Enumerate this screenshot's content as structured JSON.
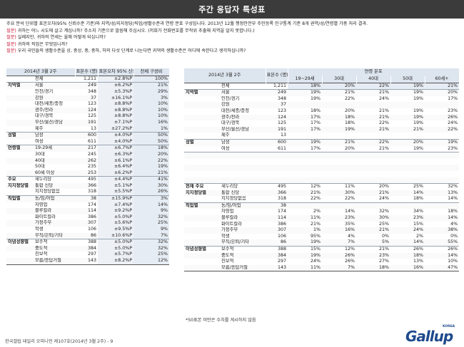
{
  "title": "주간 응답자 특성표",
  "notes": [
    {
      "label": "",
      "text": "주요 분석 단위별 표본오차(95% 신뢰수준 기준)와 지역/성/지지정당/직업/생활수준과 연령 분포 구성입니다. 2013년 12월 행정안전부 주민등록 인구통계 기준 8개 권역/성/연령별 가중 처리 결과."
    },
    {
      "label": "질문)",
      "text": " 귀하는 어느 시도에 살고 계십니까? 주소지 기준으로 말씀해 주십시오. (저희가 전화번호를 무작위 추출해 지역을 알지 못합니다.)"
    },
    {
      "label": "질문)",
      "text": " 실례지만, 귀하의 연세는 올해 어떻게 되십니까?"
    },
    {
      "label": "질문)",
      "text": " 귀하의 직업은 무엇입니까?"
    },
    {
      "label": "질문)",
      "text": " 우리 국민들의 생활수준을 상, 중상, 중, 중하, 하의 다섯 단계로 나눈다면 귀댁의 생활수준은 어디에 속한다고 생각하십니까?"
    }
  ],
  "left": {
    "headers": {
      "period": "2014년 3월 2주",
      "n": "표본수 (명)",
      "moe": "표본오차 95% 신뢰수준",
      "comp": "전체 구성비"
    },
    "rows": [
      {
        "g": "",
        "c": "전체",
        "n": "1,211",
        "e": "±2.8%P",
        "p": "100%",
        "top": "first"
      },
      {
        "g": "지역별",
        "c": "서울",
        "n": "249",
        "e": "±6.2%P",
        "p": "21%",
        "top": "sec"
      },
      {
        "g": "",
        "c": "인천/경기",
        "n": "348",
        "e": "±5.3%P",
        "p": "29%"
      },
      {
        "g": "",
        "c": "강원",
        "n": "37",
        "e": "±16.1%P",
        "p": "3%"
      },
      {
        "g": "",
        "c": "대전/세종/충청",
        "n": "123",
        "e": "±8.8%P",
        "p": "10%"
      },
      {
        "g": "",
        "c": "광주/전라",
        "n": "124",
        "e": "±8.8%P",
        "p": "10%"
      },
      {
        "g": "",
        "c": "대구/경북",
        "n": "125",
        "e": "±8.8%P",
        "p": "10%"
      },
      {
        "g": "",
        "c": "부산/울산/경남",
        "n": "191",
        "e": "±7.1%P",
        "p": "16%"
      },
      {
        "g": "",
        "c": "제주",
        "n": "13",
        "e": "±27.2%P",
        "p": "1%"
      },
      {
        "g": "성별",
        "c": "남성",
        "n": "600",
        "e": "±4.0%P",
        "p": "50%",
        "top": "sec"
      },
      {
        "g": "",
        "c": "여성",
        "n": "611",
        "e": "±4.0%P",
        "p": "50%"
      },
      {
        "g": "연령별",
        "c": "19-29세",
        "n": "217",
        "e": "±6.7%P",
        "p": "18%",
        "top": "sec"
      },
      {
        "g": "",
        "c": "30대",
        "n": "245",
        "e": "±6.3%P",
        "p": "20%"
      },
      {
        "g": "",
        "c": "40대",
        "n": "262",
        "e": "±6.1%P",
        "p": "22%"
      },
      {
        "g": "",
        "c": "50대",
        "n": "235",
        "e": "±6.4%P",
        "p": "19%"
      },
      {
        "g": "",
        "c": "60세 이상",
        "n": "253",
        "e": "±6.2%P",
        "p": "21%"
      },
      {
        "g": "주요",
        "c": "새누리당",
        "n": "495",
        "e": "±4.4%P",
        "p": "41%",
        "top": "sec"
      },
      {
        "g": "지지정당별",
        "c": "통합 신당",
        "n": "366",
        "e": "±5.1%P",
        "p": "30%"
      },
      {
        "g": "",
        "c": "지지정당없음",
        "n": "318",
        "e": "±5.5%P",
        "p": "26%"
      },
      {
        "g": "직업별",
        "c": "농/임/어업",
        "n": "38",
        "e": "±15.9%P",
        "p": "3%",
        "top": "sec"
      },
      {
        "g": "",
        "c": "자영업",
        "n": "174",
        "e": "±7.4%P",
        "p": "14%"
      },
      {
        "g": "",
        "c": "블루칼라",
        "n": "114",
        "e": "±9.2%P",
        "p": "9%"
      },
      {
        "g": "",
        "c": "화이트칼라",
        "n": "386",
        "e": "±5.0%P",
        "p": "32%"
      },
      {
        "g": "",
        "c": "가정주부",
        "n": "307",
        "e": "±5.6%P",
        "p": "25%"
      },
      {
        "g": "",
        "c": "학생",
        "n": "106",
        "e": "±9.5%P",
        "p": "9%"
      },
      {
        "g": "",
        "c": "무직/은퇴/기타",
        "n": "86",
        "e": "±10.6%P",
        "p": "7%"
      },
      {
        "g": "이념성향별",
        "c": "보수적",
        "n": "388",
        "e": "±5.0%P",
        "p": "32%",
        "top": "sec"
      },
      {
        "g": "",
        "c": "중도적",
        "n": "384",
        "e": "±5.0%P",
        "p": "32%"
      },
      {
        "g": "",
        "c": "진보적",
        "n": "297",
        "e": "±5.7%P",
        "p": "25%"
      },
      {
        "g": "",
        "c": "모름/응답거절",
        "n": "143",
        "e": "±8.2%P",
        "p": "12%",
        "last": true
      }
    ]
  },
  "right": {
    "headers": {
      "period": "2014년 3월 2주",
      "n": "표본수 (명)",
      "dist": "연령 분포",
      "a1": "19~29세",
      "a2": "30대",
      "a3": "40대",
      "a4": "50대",
      "a5": "60세+"
    },
    "rows": [
      {
        "g": "",
        "c": "전체",
        "n": "1,211",
        "v": [
          "18%",
          "20%",
          "22%",
          "19%",
          "21%"
        ],
        "top": "first"
      },
      {
        "g": "지역별",
        "c": "서울",
        "n": "249",
        "v": [
          "19%",
          "21%",
          "21%",
          "19%",
          "20%"
        ],
        "top": "sec"
      },
      {
        "g": "",
        "c": "인천/경기",
        "n": "348",
        "v": [
          "19%",
          "22%",
          "24%",
          "19%",
          "17%"
        ]
      },
      {
        "g": "",
        "c": "강원",
        "n": "37",
        "v": [
          "",
          "",
          "",
          "",
          ""
        ]
      },
      {
        "g": "",
        "c": "대전/세종/충청",
        "n": "123",
        "v": [
          "18%",
          "20%",
          "21%",
          "19%",
          "23%"
        ]
      },
      {
        "g": "",
        "c": "광주/전라",
        "n": "124",
        "v": [
          "17%",
          "18%",
          "21%",
          "19%",
          "26%"
        ]
      },
      {
        "g": "",
        "c": "대구/경북",
        "n": "125",
        "v": [
          "17%",
          "18%",
          "22%",
          "19%",
          "24%"
        ]
      },
      {
        "g": "",
        "c": "부산/울산/경남",
        "n": "191",
        "v": [
          "17%",
          "19%",
          "21%",
          "21%",
          "22%"
        ]
      },
      {
        "g": "",
        "c": "제주",
        "n": "13",
        "v": [
          "",
          "",
          "",
          "",
          ""
        ]
      },
      {
        "g": "성별",
        "c": "남성",
        "n": "600",
        "v": [
          "19%",
          "21%",
          "22%",
          "20%",
          "19%"
        ],
        "top": "sec"
      },
      {
        "g": "",
        "c": "여성",
        "n": "611",
        "v": [
          "17%",
          "20%",
          "21%",
          "19%",
          "23%"
        ]
      },
      {
        "g": "",
        "c": "",
        "n": "",
        "v": [
          "",
          "",
          "",
          "",
          ""
        ],
        "top": "sec"
      },
      {
        "g": "",
        "c": "",
        "n": "",
        "v": [
          "",
          "",
          "",
          "",
          ""
        ]
      },
      {
        "g": "",
        "c": "",
        "n": "",
        "v": [
          "",
          "",
          "",
          "",
          ""
        ]
      },
      {
        "g": "",
        "c": "",
        "n": "",
        "v": [
          "",
          "",
          "",
          "",
          ""
        ]
      },
      {
        "g": "",
        "c": "",
        "n": "",
        "v": [
          "",
          "",
          "",
          "",
          ""
        ]
      },
      {
        "g": "현재 주요",
        "c": "새누리당",
        "n": "495",
        "v": [
          "12%",
          "11%",
          "20%",
          "25%",
          "32%"
        ],
        "top": "sec"
      },
      {
        "g": "지지정당별",
        "c": "통합 신당",
        "n": "366",
        "v": [
          "21%",
          "30%",
          "21%",
          "14%",
          "13%"
        ]
      },
      {
        "g": "",
        "c": "지지정당없음",
        "n": "318",
        "v": [
          "22%",
          "22%",
          "24%",
          "18%",
          "14%"
        ]
      },
      {
        "g": "직업별",
        "c": "농/임/어업",
        "n": "38",
        "v": [
          "",
          "",
          "",
          "",
          ""
        ],
        "top": "sec"
      },
      {
        "g": "",
        "c": "자영업",
        "n": "174",
        "v": [
          "2%",
          "14%",
          "32%",
          "34%",
          "18%"
        ]
      },
      {
        "g": "",
        "c": "블루칼라",
        "n": "114",
        "v": [
          "11%",
          "23%",
          "30%",
          "23%",
          "14%"
        ]
      },
      {
        "g": "",
        "c": "화이트칼라",
        "n": "386",
        "v": [
          "21%",
          "35%",
          "25%",
          "15%",
          "4%"
        ]
      },
      {
        "g": "",
        "c": "가정주부",
        "n": "307",
        "v": [
          "1%",
          "16%",
          "21%",
          "24%",
          "38%"
        ]
      },
      {
        "g": "",
        "c": "학생",
        "n": "106",
        "v": [
          "95%",
          "4%",
          "0%",
          "2%",
          "0%"
        ]
      },
      {
        "g": "",
        "c": "무직/은퇴/기타",
        "n": "86",
        "v": [
          "19%",
          "7%",
          "5%",
          "14%",
          "55%"
        ]
      },
      {
        "g": "이념성향별",
        "c": "보수적",
        "n": "388",
        "v": [
          "15%",
          "12%",
          "21%",
          "26%",
          "26%"
        ],
        "top": "sec"
      },
      {
        "g": "",
        "c": "중도적",
        "n": "384",
        "v": [
          "19%",
          "26%",
          "23%",
          "18%",
          "14%"
        ]
      },
      {
        "g": "",
        "c": "진보적",
        "n": "297",
        "v": [
          "24%",
          "26%",
          "27%",
          "13%",
          "10%"
        ]
      },
      {
        "g": "",
        "c": "모름/응답거절",
        "n": "143",
        "v": [
          "11%",
          "7%",
          "18%",
          "16%",
          "47%"
        ],
        "last": true
      }
    ]
  },
  "footnote": "*50표본 미만은 수치를 게시하지 않음",
  "footer": "한국갤럽 데일리 오피니언 제107호(2014년 3월 2주) - 9",
  "logo": {
    "word": "Gallup",
    "tag": "KOREA"
  }
}
